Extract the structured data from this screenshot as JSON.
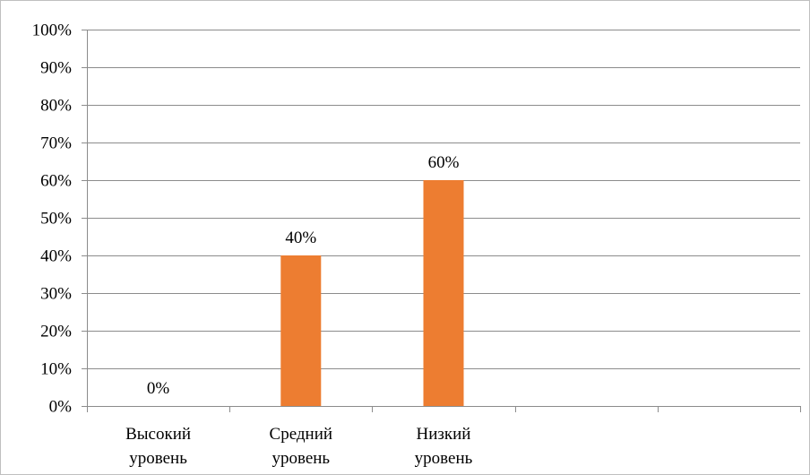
{
  "chart_data": {
    "type": "bar",
    "categories": [
      [
        "Высокий",
        "уровень"
      ],
      [
        "Средний",
        "уровень"
      ],
      [
        "Низкий",
        "уровень"
      ],
      [],
      []
    ],
    "values": [
      0,
      40,
      60,
      null,
      null
    ],
    "data_labels": [
      "0%",
      "40%",
      "60%",
      "",
      ""
    ],
    "ylim": [
      0,
      100
    ],
    "ytick_step": 10,
    "ytick_labels": [
      "0%",
      "10%",
      "20%",
      "30%",
      "40%",
      "50%",
      "60%",
      "70%",
      "80%",
      "90%",
      "100%"
    ],
    "grid": true,
    "legend": "none",
    "colors": {
      "bar": "#ed7d31",
      "grid": "#8c8c8c",
      "axis": "#8c8c8c",
      "border": "#bfbfbf"
    }
  }
}
